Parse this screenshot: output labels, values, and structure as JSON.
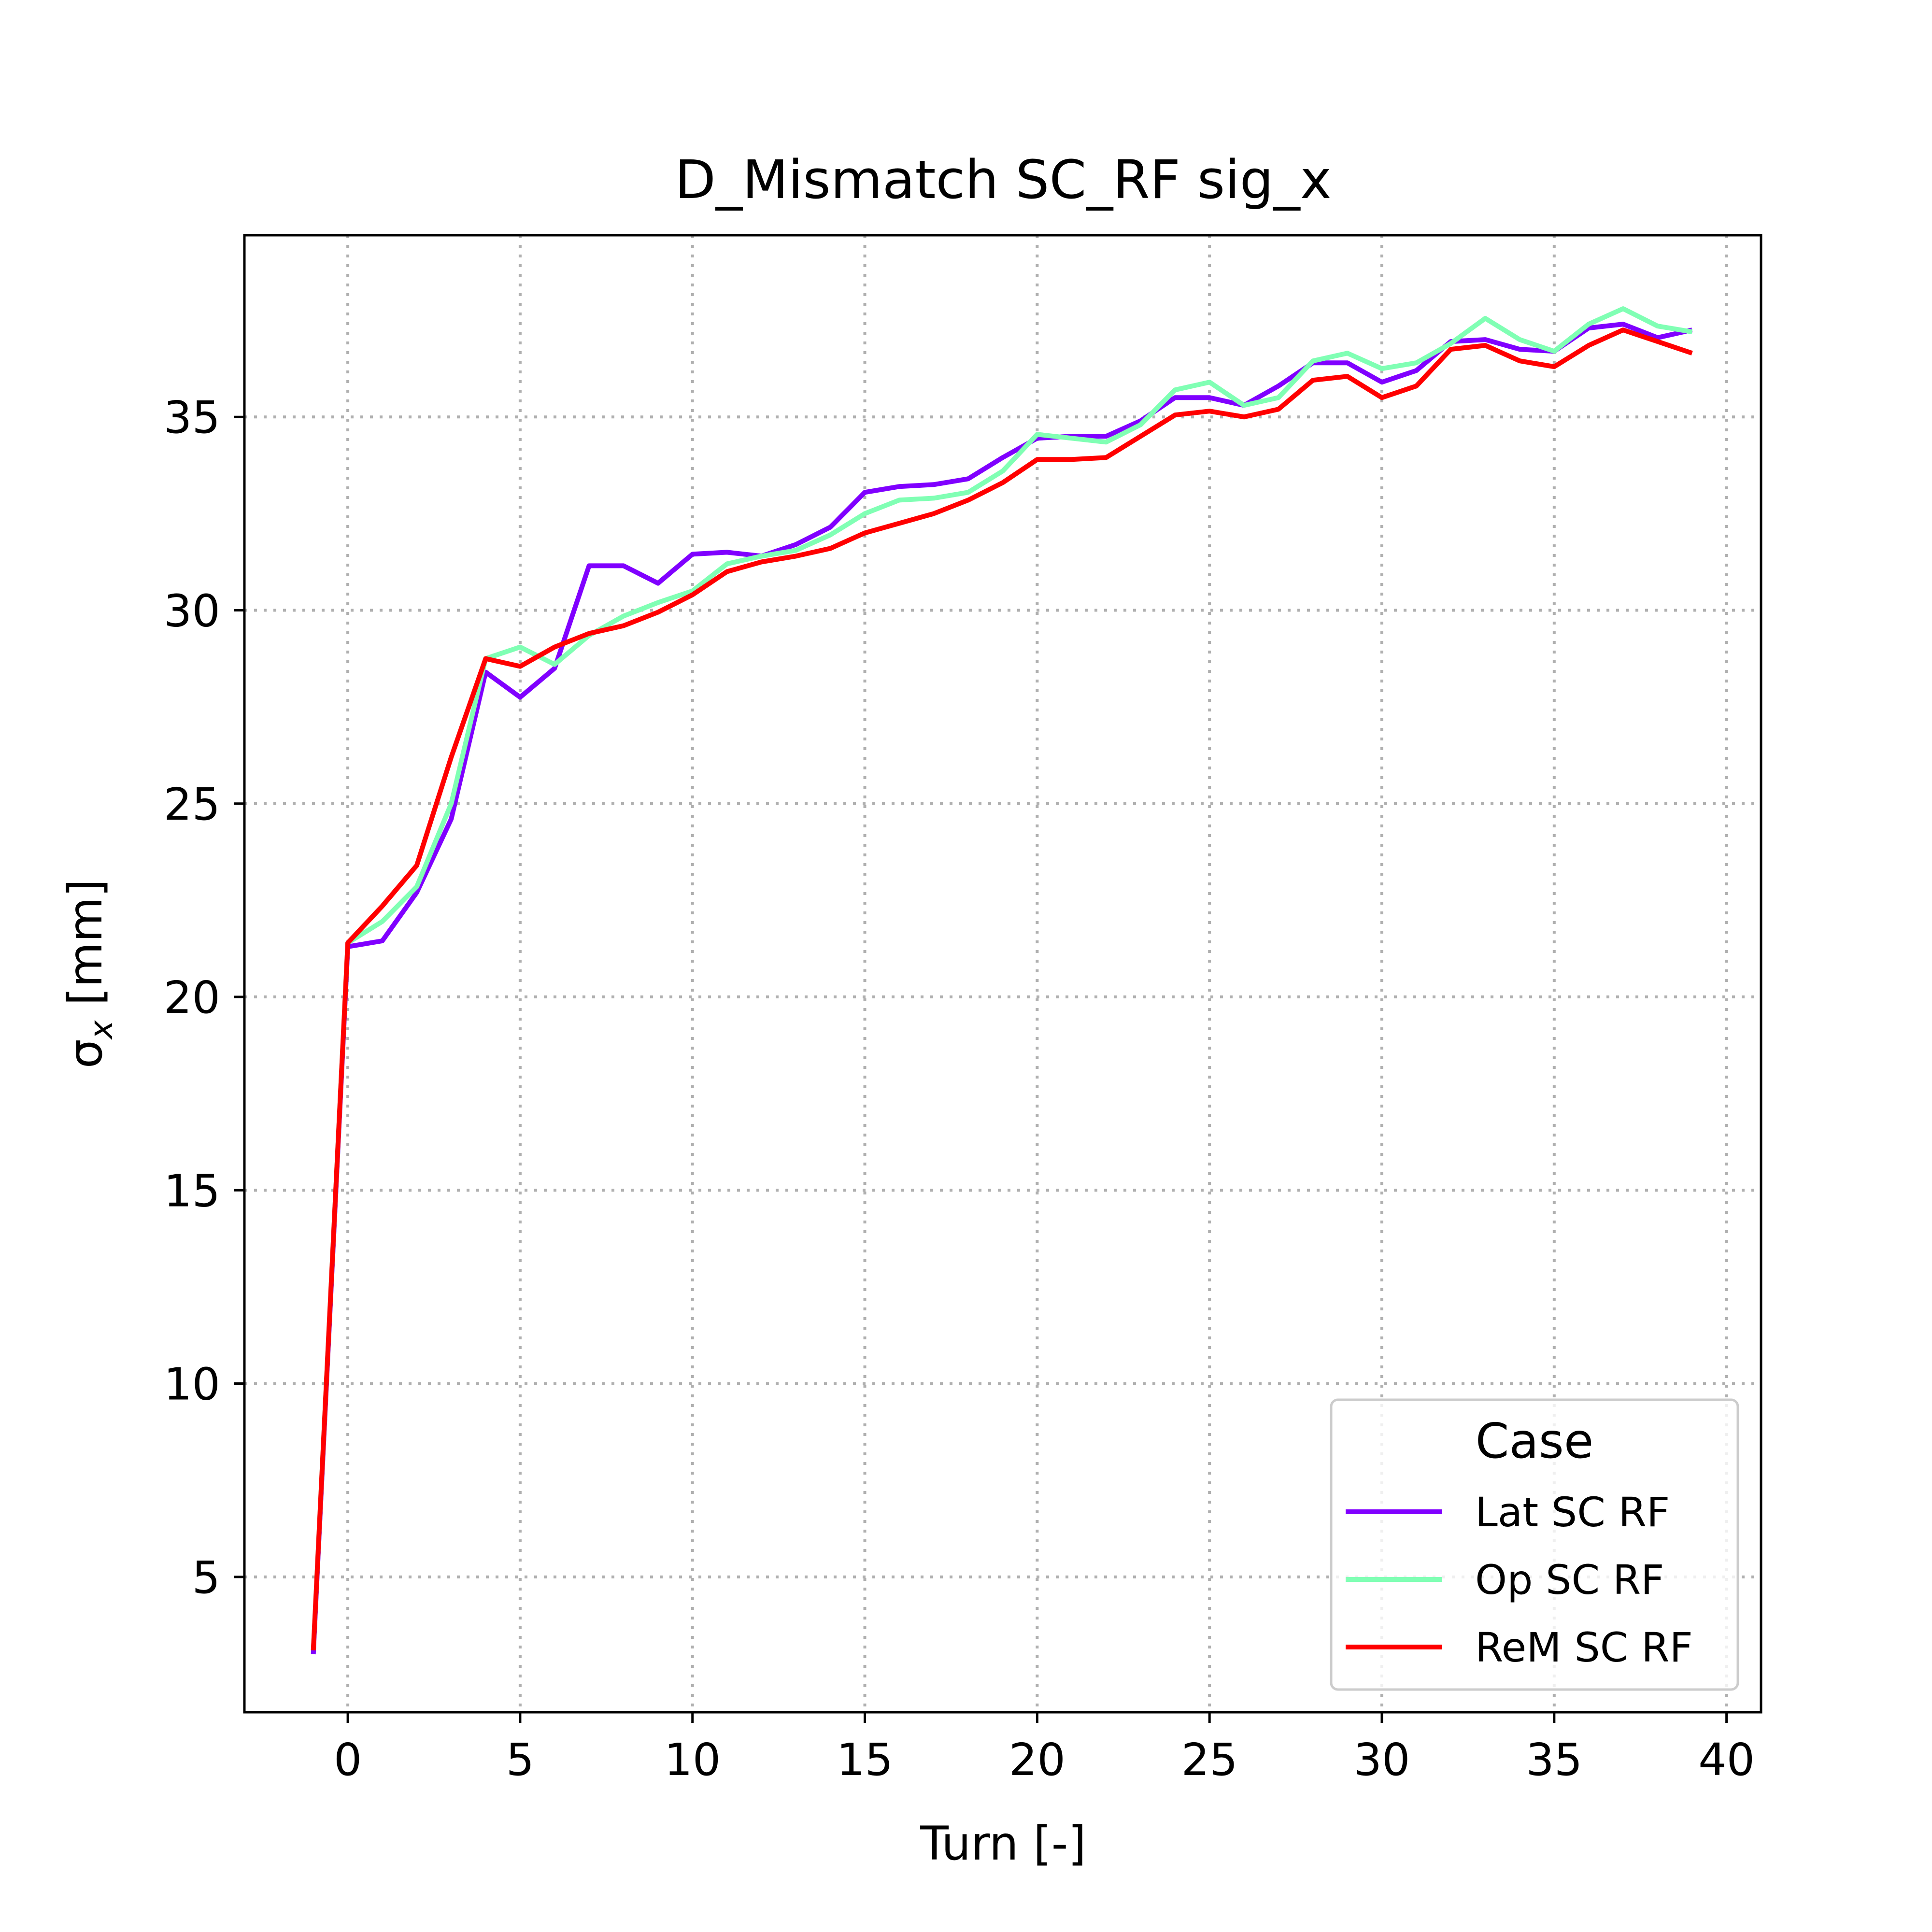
{
  "chart_data": {
    "type": "line",
    "title": "D_Mismatch SC_RF sig_x",
    "xlabel": "Turn [-]",
    "ylabel_symbol": "σ",
    "ylabel_subscript": "x",
    "ylabel_unit": " [mm]",
    "xlim": [
      -3,
      41
    ],
    "ylim": [
      1.5,
      39.7
    ],
    "xticks": [
      "0",
      "5",
      "10",
      "15",
      "20",
      "25",
      "30",
      "35",
      "40"
    ],
    "yticks": [
      "5",
      "10",
      "15",
      "20",
      "25",
      "30",
      "35"
    ],
    "grid": true,
    "legend": {
      "title": "Case",
      "position": "lower right"
    },
    "x": [
      -1,
      0,
      1,
      2,
      3,
      4,
      5,
      6,
      7,
      8,
      9,
      10,
      11,
      12,
      13,
      14,
      15,
      16,
      17,
      18,
      19,
      20,
      21,
      22,
      23,
      24,
      25,
      26,
      27,
      28,
      29,
      30,
      31,
      32,
      33,
      34,
      35,
      36,
      37,
      38,
      39
    ],
    "series": [
      {
        "name": "Lat SC RF",
        "color": "#8000ff",
        "values": [
          3.0,
          21.3,
          21.45,
          22.7,
          24.6,
          28.4,
          27.75,
          28.5,
          31.15,
          31.15,
          30.7,
          31.45,
          31.5,
          31.4,
          31.7,
          32.15,
          33.05,
          33.2,
          33.25,
          33.4,
          33.95,
          34.45,
          34.5,
          34.5,
          34.9,
          35.5,
          35.5,
          35.3,
          35.8,
          36.4,
          36.4,
          35.9,
          36.2,
          36.95,
          37.0,
          36.75,
          36.7,
          37.3,
          37.4,
          37.05,
          37.25
        ]
      },
      {
        "name": "Op SC RF",
        "color": "#80ffb4",
        "values": [
          3.1,
          21.4,
          21.95,
          22.85,
          25.0,
          28.75,
          29.05,
          28.6,
          29.35,
          29.85,
          30.2,
          30.5,
          31.2,
          31.4,
          31.55,
          31.95,
          32.5,
          32.85,
          32.9,
          33.05,
          33.6,
          34.55,
          34.45,
          34.35,
          34.8,
          35.7,
          35.9,
          35.3,
          35.5,
          36.45,
          36.65,
          36.25,
          36.4,
          36.9,
          37.55,
          37.0,
          36.7,
          37.4,
          37.8,
          37.35,
          37.2
        ]
      },
      {
        "name": "ReM SC RF",
        "color": "#ff0000",
        "values": [
          3.1,
          21.4,
          22.35,
          23.4,
          26.2,
          28.75,
          28.55,
          29.05,
          29.4,
          29.6,
          29.95,
          30.4,
          31.0,
          31.25,
          31.4,
          31.6,
          32.0,
          32.25,
          32.5,
          32.85,
          33.3,
          33.9,
          33.9,
          33.95,
          34.5,
          35.05,
          35.15,
          35.0,
          35.2,
          35.95,
          36.05,
          35.5,
          35.8,
          36.75,
          36.85,
          36.45,
          36.3,
          36.85,
          37.25,
          36.95,
          36.65
        ]
      }
    ]
  }
}
